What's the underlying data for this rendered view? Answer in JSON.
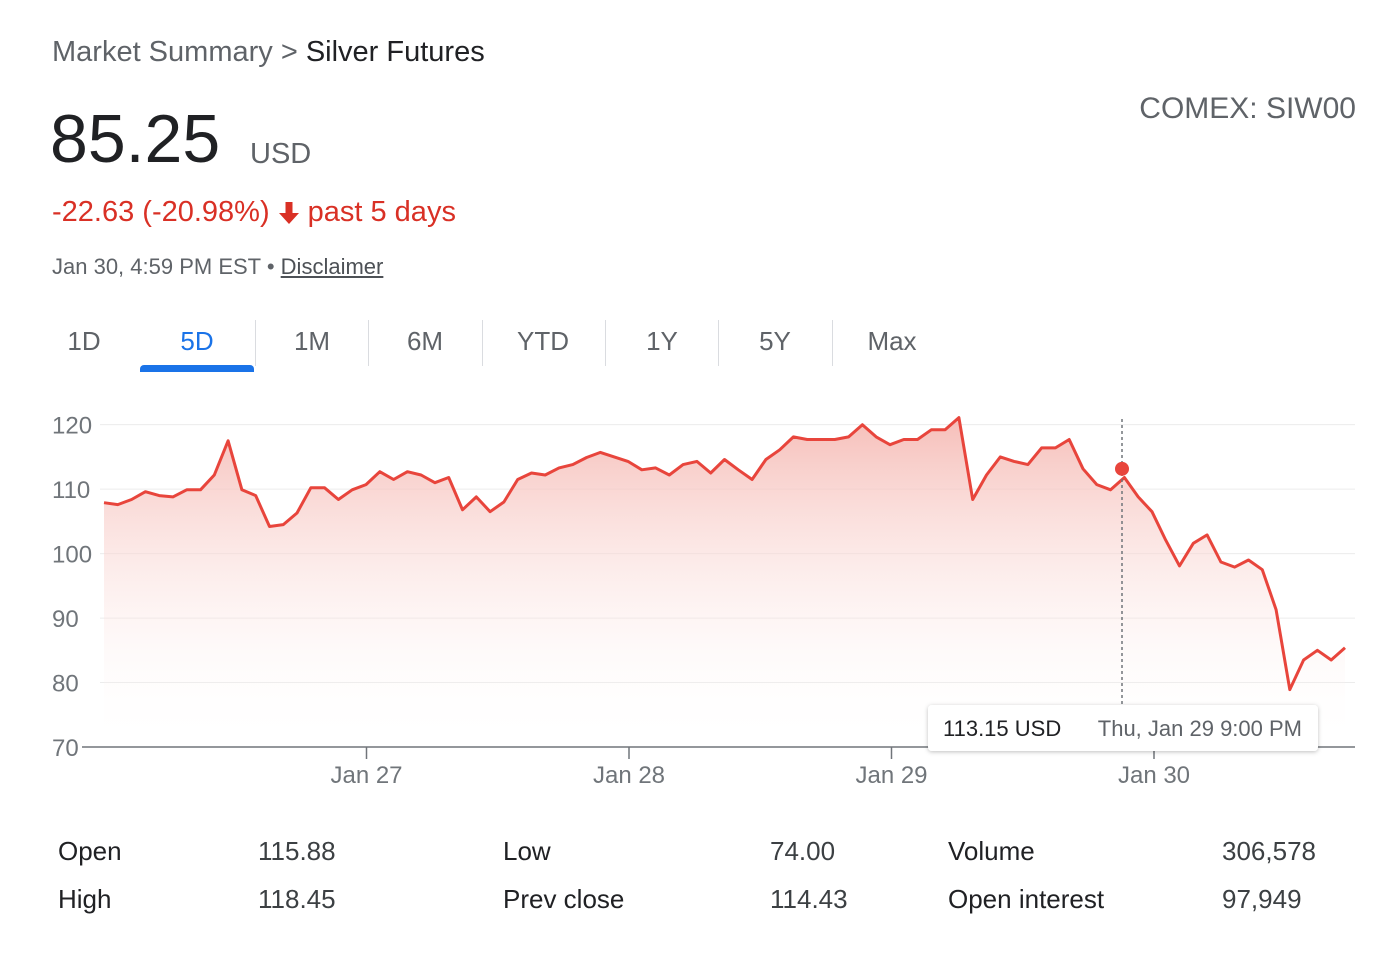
{
  "breadcrumb": [
    "Market Summary",
    "Silver Futures"
  ],
  "breadcrumb_separator": ">",
  "price": "85.25",
  "currency": "USD",
  "exchange": "COMEX: SIW00",
  "change": "-22.63 (-20.98%)",
  "change_period": "past 5 days",
  "timestamp": "Jan 30, 4:59 PM EST",
  "timestamp_separator": "•",
  "disclaimer": "Disclaimer",
  "tabs": [
    "1D",
    "5D",
    "1M",
    "6M",
    "YTD",
    "1Y",
    "5Y",
    "Max"
  ],
  "active_tab": "5D",
  "chart_data": {
    "type": "line",
    "color": "#e8453c",
    "area": true,
    "grid": true,
    "ylim": [
      70,
      121.5
    ],
    "yticks": [
      70,
      80,
      90,
      100,
      110,
      120
    ],
    "xtick_labels": [
      "Jan 27",
      "Jan 28",
      "Jan 29",
      "Jan 30"
    ],
    "values": [
      107.9,
      107.6,
      108.4,
      109.6,
      109,
      108.8,
      109.9,
      109.9,
      112.2,
      117.5,
      109.9,
      109,
      104.2,
      104.5,
      106.3,
      110.2,
      110.2,
      108.4,
      109.9,
      110.7,
      112.7,
      111.5,
      112.7,
      112.2,
      111,
      111.8,
      106.8,
      108.8,
      106.5,
      108,
      111.5,
      112.5,
      112.2,
      113.3,
      113.8,
      114.9,
      115.7,
      115,
      114.3,
      113,
      113.3,
      112.2,
      113.8,
      114.3,
      112.5,
      114.6,
      113,
      111.5,
      114.6,
      116.1,
      118.1,
      117.7,
      117.7,
      117.7,
      118.1,
      120,
      118.1,
      116.9,
      117.7,
      117.7,
      119.2,
      119.2,
      121.1,
      108.4,
      112.2,
      115,
      114.3,
      113.8,
      116.4,
      116.4,
      117.7,
      113.15,
      110.7,
      109.9,
      111.8,
      108.8,
      106.5,
      102.1,
      98.1,
      101.6,
      102.9,
      98.7,
      97.9,
      99,
      97.5,
      91.3,
      78.9,
      83.5,
      85,
      83.5,
      85.4
    ],
    "hover": {
      "value": 113.15,
      "label": "113.15 USD",
      "time": "Thu, Jan 29 9:00 PM"
    }
  },
  "stats": [
    [
      [
        "Open",
        "115.88"
      ],
      [
        "Low",
        "74.00"
      ],
      [
        "Volume",
        "306,578"
      ]
    ],
    [
      [
        "High",
        "118.45"
      ],
      [
        "Prev close",
        "114.43"
      ],
      [
        "Open interest",
        "97,949"
      ]
    ]
  ]
}
